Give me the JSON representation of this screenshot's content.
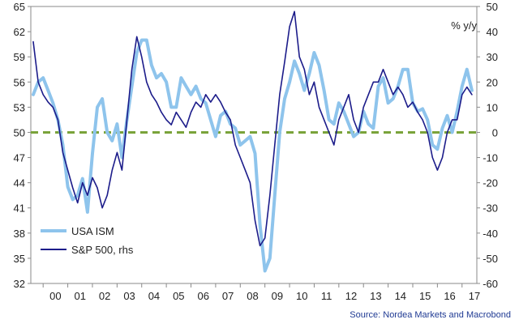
{
  "chart_data": {
    "type": "line",
    "title": "",
    "unit_label": "% y/y",
    "source": "Source: Nordea Markets and Macrobond",
    "x_axis": {
      "range": [
        1999.5,
        2017.6
      ],
      "tick_labels": [
        "00",
        "01",
        "02",
        "03",
        "04",
        "05",
        "06",
        "07",
        "08",
        "09",
        "10",
        "11",
        "12",
        "13",
        "14",
        "15",
        "16",
        "17"
      ]
    },
    "left_axis": {
      "range": [
        32,
        65
      ],
      "ticks": [
        32,
        35,
        38,
        41,
        44,
        47,
        50,
        53,
        56,
        59,
        62,
        65
      ]
    },
    "right_axis": {
      "range": [
        -60,
        50
      ],
      "ticks": [
        -60,
        -50,
        -40,
        -30,
        -20,
        -10,
        0,
        10,
        20,
        30,
        40,
        50
      ]
    },
    "reference_line": {
      "axis": "right",
      "value": 0,
      "color": "#7aa33a",
      "style": "dashed"
    },
    "legend": {
      "placement": "bottom-left"
    },
    "series": [
      {
        "name": "USA ISM",
        "axis": "left",
        "color": "#8ec4ec",
        "x": [
          1999.6,
          1999.8,
          2000.0,
          2000.2,
          2000.4,
          2000.6,
          2000.8,
          2001.0,
          2001.2,
          2001.4,
          2001.6,
          2001.8,
          2002.0,
          2002.2,
          2002.4,
          2002.6,
          2002.8,
          2003.0,
          2003.2,
          2003.4,
          2003.6,
          2003.8,
          2004.0,
          2004.2,
          2004.4,
          2004.6,
          2004.8,
          2005.0,
          2005.2,
          2005.4,
          2005.6,
          2005.8,
          2006.0,
          2006.2,
          2006.4,
          2006.6,
          2006.8,
          2007.0,
          2007.2,
          2007.4,
          2007.6,
          2007.8,
          2008.0,
          2008.2,
          2008.4,
          2008.6,
          2008.8,
          2009.0,
          2009.2,
          2009.4,
          2009.6,
          2009.8,
          2010.0,
          2010.2,
          2010.4,
          2010.6,
          2010.8,
          2011.0,
          2011.2,
          2011.4,
          2011.6,
          2011.8,
          2012.0,
          2012.2,
          2012.4,
          2012.6,
          2012.8,
          2013.0,
          2013.2,
          2013.4,
          2013.6,
          2013.8,
          2014.0,
          2014.2,
          2014.4,
          2014.6,
          2014.8,
          2015.0,
          2015.2,
          2015.4,
          2015.6,
          2015.8,
          2016.0,
          2016.2,
          2016.4,
          2016.6,
          2016.8,
          2017.0,
          2017.2,
          2017.4
        ],
        "y": [
          54.5,
          56.0,
          56.5,
          55.0,
          53.5,
          51.5,
          48.5,
          43.5,
          42.0,
          42.5,
          44.5,
          40.5,
          47.5,
          53.0,
          54.0,
          50.0,
          49.0,
          51.0,
          47.0,
          51.5,
          55.5,
          59.5,
          61.0,
          61.0,
          58.0,
          56.5,
          57.0,
          56.0,
          53.0,
          53.0,
          56.5,
          55.5,
          54.5,
          55.5,
          54.0,
          53.5,
          51.5,
          49.5,
          52.0,
          52.5,
          51.0,
          50.5,
          48.5,
          49.0,
          49.5,
          47.5,
          39.0,
          33.5,
          35.0,
          42.5,
          50.0,
          54.0,
          56.0,
          58.5,
          57.0,
          55.0,
          57.0,
          59.5,
          58.0,
          55.0,
          51.5,
          51.0,
          53.5,
          52.5,
          51.0,
          49.5,
          50.0,
          52.5,
          51.0,
          50.5,
          55.5,
          56.5,
          53.5,
          54.0,
          55.5,
          57.5,
          57.5,
          53.5,
          52.5,
          52.8,
          51.5,
          48.5,
          48.0,
          50.5,
          52.0,
          50.0,
          52.5,
          55.5,
          57.5,
          55.0
        ]
      },
      {
        "name": "S&P 500, rhs",
        "axis": "right",
        "color": "#1c1c8a",
        "x": [
          1999.6,
          1999.8,
          2000.0,
          2000.2,
          2000.4,
          2000.6,
          2000.8,
          2001.0,
          2001.2,
          2001.4,
          2001.6,
          2001.8,
          2002.0,
          2002.2,
          2002.4,
          2002.6,
          2002.8,
          2003.0,
          2003.2,
          2003.4,
          2003.6,
          2003.8,
          2004.0,
          2004.2,
          2004.4,
          2004.6,
          2004.8,
          2005.0,
          2005.2,
          2005.4,
          2005.6,
          2005.8,
          2006.0,
          2006.2,
          2006.4,
          2006.6,
          2006.8,
          2007.0,
          2007.2,
          2007.4,
          2007.6,
          2007.8,
          2008.0,
          2008.2,
          2008.4,
          2008.6,
          2008.8,
          2009.0,
          2009.2,
          2009.4,
          2009.6,
          2009.8,
          2010.0,
          2010.2,
          2010.4,
          2010.6,
          2010.8,
          2011.0,
          2011.2,
          2011.4,
          2011.6,
          2011.8,
          2012.0,
          2012.2,
          2012.4,
          2012.6,
          2012.8,
          2013.0,
          2013.2,
          2013.4,
          2013.6,
          2013.8,
          2014.0,
          2014.2,
          2014.4,
          2014.6,
          2014.8,
          2015.0,
          2015.2,
          2015.4,
          2015.6,
          2015.8,
          2016.0,
          2016.2,
          2016.4,
          2016.6,
          2016.8,
          2017.0,
          2017.2,
          2017.4
        ],
        "y": [
          36,
          20,
          15,
          12,
          10,
          5,
          -8,
          -15,
          -22,
          -28,
          -20,
          -25,
          -18,
          -22,
          -30,
          -25,
          -15,
          -8,
          -15,
          5,
          25,
          38,
          30,
          20,
          15,
          12,
          8,
          5,
          3,
          8,
          5,
          2,
          8,
          12,
          10,
          15,
          12,
          15,
          12,
          8,
          5,
          -5,
          -10,
          -15,
          -20,
          -35,
          -45,
          -42,
          -25,
          -5,
          15,
          28,
          42,
          48,
          30,
          25,
          15,
          20,
          10,
          5,
          0,
          -5,
          5,
          10,
          15,
          5,
          0,
          10,
          15,
          20,
          20,
          25,
          20,
          15,
          18,
          15,
          10,
          12,
          8,
          5,
          0,
          -10,
          -15,
          -10,
          0,
          5,
          5,
          15,
          18,
          15
        ]
      }
    ]
  }
}
